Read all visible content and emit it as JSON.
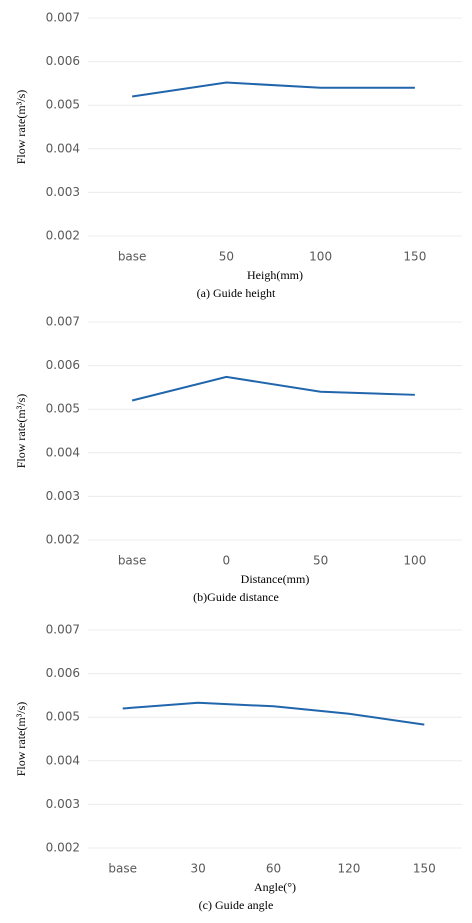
{
  "chart_data": [
    {
      "type": "line",
      "categories": [
        "base",
        "50",
        "100",
        "150"
      ],
      "values": [
        0.0052,
        0.00552,
        0.0054,
        0.0054
      ],
      "color": "#2166ac",
      "ylim": [
        0.002,
        0.007
      ],
      "yticks": [
        0.002,
        0.003,
        0.004,
        0.005,
        0.006,
        0.007
      ],
      "grid": true,
      "ylabel": "Flow rate(m³/s)",
      "xlabel": "Heigh(mm)",
      "caption": "(a)  Guide  height"
    },
    {
      "type": "line",
      "categories": [
        "base",
        "0",
        "50",
        "100"
      ],
      "values": [
        0.0052,
        0.00574,
        0.0054,
        0.00533
      ],
      "color": "#2166ac",
      "ylim": [
        0.002,
        0.007
      ],
      "yticks": [
        0.002,
        0.003,
        0.004,
        0.005,
        0.006,
        0.007
      ],
      "grid": true,
      "ylabel": "Flow rate(m³/s)",
      "xlabel": "Distance(mm)",
      "caption": "(b)Guide  distance"
    },
    {
      "type": "line",
      "categories": [
        "base",
        "30",
        "60",
        "120",
        "150"
      ],
      "values": [
        0.0052,
        0.00533,
        0.00525,
        0.00508,
        0.00483
      ],
      "color": "#2166ac",
      "ylim": [
        0.002,
        0.007
      ],
      "yticks": [
        0.002,
        0.003,
        0.004,
        0.005,
        0.006,
        0.007
      ],
      "grid": true,
      "ylabel": "Flow rate(m³/s)",
      "xlabel": "Angle(°)",
      "caption": "(c)  Guide  angle"
    }
  ]
}
